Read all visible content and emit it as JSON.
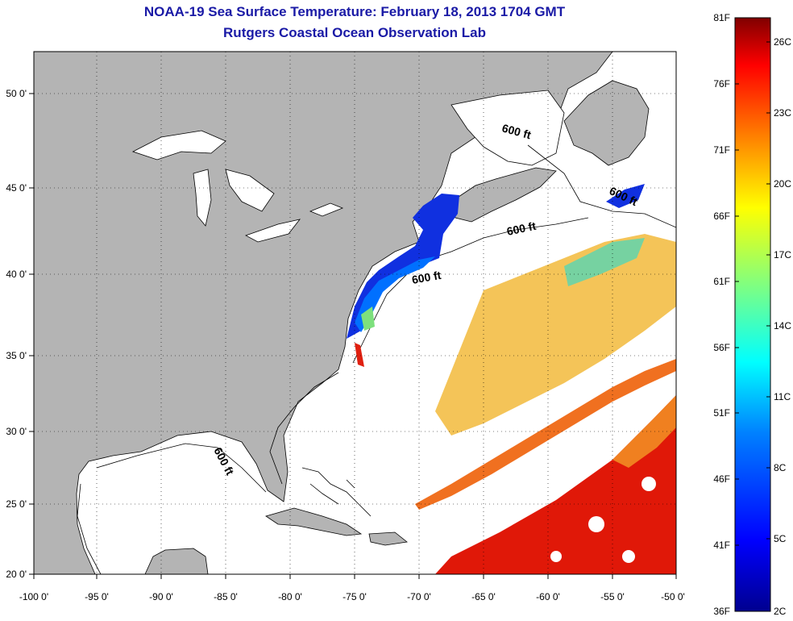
{
  "header": {
    "title": "NOAA-19 Sea Surface Temperature:  February 18, 2013 1704 GMT",
    "subtitle": "Rutgers Coastal Ocean Observation Lab"
  },
  "map": {
    "lon_range": [
      -100,
      -50
    ],
    "lat_range": [
      20,
      52.5
    ],
    "lon_ticks": [
      "-100 0'",
      "-95 0'",
      "-90 0'",
      "-85 0'",
      "-80 0'",
      "-75 0'",
      "-70 0'",
      "-65 0'",
      "-60 0'",
      "-55 0'",
      "-50 0'"
    ],
    "lat_ticks": [
      "50 0'",
      "45 0'",
      "40 0'",
      "35 0'",
      "30 0'",
      "25 0'",
      "20 0'"
    ],
    "grid": "dotted",
    "land_color": "#b4b4b4",
    "isobath_labels": [
      "600 ft",
      "600 ft",
      "600 ft",
      "600 ft",
      "600 ft"
    ]
  },
  "colorbar": {
    "f_labels": [
      "81F",
      "76F",
      "71F",
      "66F",
      "61F",
      "56F",
      "51F",
      "46F",
      "41F",
      "36F"
    ],
    "c_labels": [
      "26C",
      "23C",
      "20C",
      "17C",
      "14C",
      "11C",
      "8C",
      "5C",
      "2C"
    ],
    "colors": [
      "#00008f",
      "#0000ff",
      "#0080ff",
      "#00ffff",
      "#80ff80",
      "#ffff00",
      "#ff8000",
      "#ff0000",
      "#800000"
    ]
  }
}
